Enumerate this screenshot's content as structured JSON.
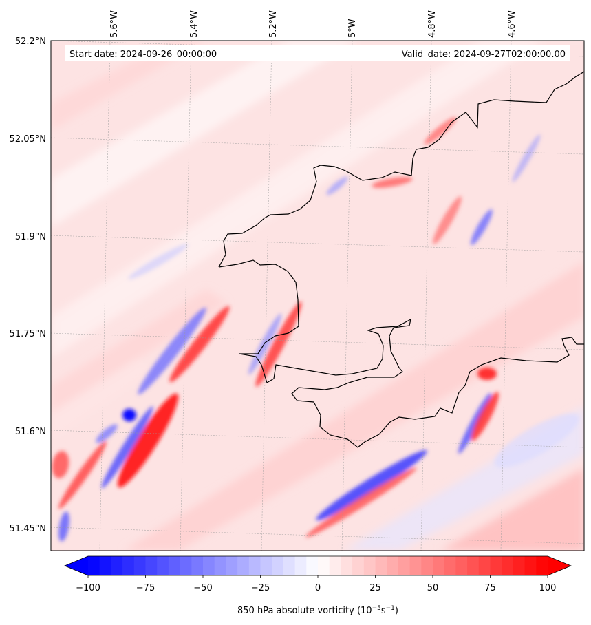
{
  "map": {
    "start_label": "Start date: 2024-09-26_00:00:00",
    "valid_label": "Valid_date: 2024-09-27T02:00:00.00",
    "lon_labels": [
      "5.6°W",
      "5.4°W",
      "5.2°W",
      "5°W",
      "4.8°W",
      "4.6°W"
    ],
    "lat_labels": [
      "52.2°N",
      "52.05°N",
      "51.9°N",
      "51.75°N",
      "51.6°N",
      "51.45°N"
    ],
    "coastline_color": "#000000"
  },
  "colorbar": {
    "title_main": "850 hPa absolute vorticity (10",
    "title_exp1": "−5",
    "title_mid": "s",
    "title_exp2": "−1",
    "title_end": ")",
    "ticks": [
      "−100",
      "−75",
      "−50",
      "−25",
      "0",
      "25",
      "50",
      "75",
      "100"
    ],
    "range": [
      -100,
      100
    ],
    "low_color": "#0000ff",
    "mid_color": "#ffffff",
    "high_color": "#ff0000"
  }
}
